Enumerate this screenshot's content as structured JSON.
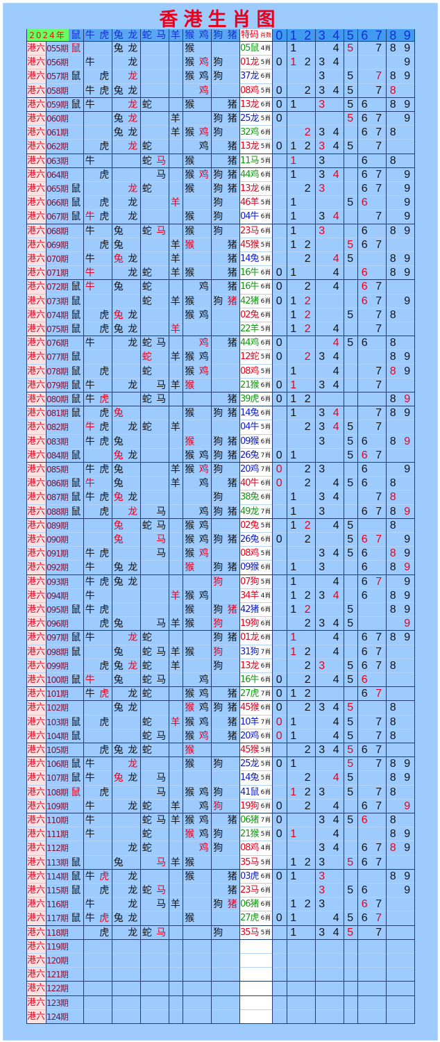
{
  "title": "香港生肖图",
  "header": {
    "year": "2024年",
    "zodiacs": [
      "鼠",
      "牛",
      "虎",
      "兔",
      "龙",
      "蛇",
      "马",
      "羊",
      "猴",
      "鸡",
      "狗",
      "猪"
    ],
    "code_label": "特码",
    "count_label": "肖数",
    "digits": [
      "0",
      "1",
      "2",
      "3",
      "4",
      "5",
      "6",
      "7",
      "8",
      "9"
    ]
  },
  "colors": {
    "accent_red": "#e8001c",
    "wave_green": "#119911",
    "wave_red": "#e8001c",
    "wave_blue": "#0a1acc",
    "background": "#9ecbfd",
    "year_cell": "#66ff66",
    "label_column": "#fde2e2"
  },
  "row_label": "港六",
  "rows": [
    {
      "p": "055期",
      "z": "鼠兔龙猴",
      "zr": "鼠",
      "c": "05鼠",
      "w": "green",
      "n": "4肖",
      "d": "145789",
      "dr": "5"
    },
    {
      "p": "056期",
      "z": "牛龙猴鸡狗",
      "zr": "鸡",
      "c": "01龙",
      "w": "red",
      "n": "5肖",
      "d": "012349",
      "dr": "1"
    },
    {
      "p": "057期",
      "z": "鼠虎龙猴鸡狗",
      "zr": "龙",
      "c": "37龙",
      "w": "blue",
      "n": "6肖",
      "d": "35789",
      "dr": "7"
    },
    {
      "p": "058期",
      "z": "牛虎兔龙鸡",
      "zr": "鸡",
      "c": "08鸡",
      "w": "red",
      "n": "5肖",
      "d": "0234578",
      "dr": "8",
      "end": true
    },
    {
      "p": "059期",
      "z": "鼠牛龙蛇猴猪",
      "zr": "龙",
      "c": "13龙",
      "w": "red",
      "n": "6肖",
      "d": "0135689",
      "dr": "3",
      "end": true
    },
    {
      "p": "060期",
      "z": "兔龙羊狗猪",
      "zr": "龙",
      "c": "25龙",
      "w": "blue",
      "n": "5肖",
      "d": "05679",
      "dr": "5"
    },
    {
      "p": "061期",
      "z": "兔龙羊猴鸡狗",
      "zr": "鸡",
      "c": "32鸡",
      "w": "green",
      "n": "6肖",
      "d": "234678",
      "dr": "2"
    },
    {
      "p": "062期",
      "z": "虎龙蛇鸡猪",
      "zr": "龙",
      "c": "13龙",
      "w": "red",
      "n": "5肖",
      "d": "0123457",
      "dr": "3",
      "end": true
    },
    {
      "p": "063期",
      "z": "牛蛇马猴猪",
      "zr": "马",
      "c": "11马",
      "w": "green",
      "n": "5肖",
      "d": "1368",
      "dr": "1",
      "end": true
    },
    {
      "p": "064期",
      "z": "虎马猴鸡狗猪",
      "zr": "鸡",
      "c": "44鸡",
      "w": "green",
      "n": "6肖",
      "d": "134679",
      "dr": "4"
    },
    {
      "p": "065期",
      "z": "鼠龙蛇猴狗猪",
      "zr": "龙",
      "c": "13龙",
      "w": "red",
      "n": "6肖",
      "d": "23679",
      "dr": "3"
    },
    {
      "p": "066期",
      "z": "鼠虎龙羊狗",
      "zr": "羊",
      "c": "46羊",
      "w": "red",
      "n": "5肖",
      "d": "1569",
      "dr": "6"
    },
    {
      "p": "067期",
      "z": "鼠牛虎龙猴狗",
      "zr": "牛",
      "c": "04牛",
      "w": "blue",
      "n": "6肖",
      "d": "13479",
      "dr": "4",
      "end": true
    },
    {
      "p": "068期",
      "z": "牛兔蛇马猴狗",
      "zr": "马",
      "c": "23马",
      "w": "red",
      "n": "6肖",
      "d": "13689",
      "dr": "3"
    },
    {
      "p": "069期",
      "z": "虎兔羊猴猪",
      "zr": "猴",
      "c": "45猴",
      "w": "red",
      "n": "5肖",
      "d": "12567",
      "dr": "5"
    },
    {
      "p": "070期",
      "z": "牛兔龙羊猪",
      "zr": "兔",
      "c": "14兔",
      "w": "blue",
      "n": "5肖",
      "d": "24589",
      "dr": "4"
    },
    {
      "p": "071期",
      "z": "牛龙蛇羊猴猪",
      "zr": "牛",
      "c": "16牛",
      "w": "green",
      "n": "6肖",
      "d": "014689",
      "dr": "6",
      "end": true
    },
    {
      "p": "072期",
      "z": "鼠牛兔蛇鸡猪",
      "zr": "牛",
      "c": "16牛",
      "w": "green",
      "n": "6肖",
      "d": "02467",
      "dr": "6"
    },
    {
      "p": "073期",
      "z": "鼠蛇羊猴狗猪",
      "zr": "猪",
      "c": "42猪",
      "w": "green",
      "n": "6肖",
      "d": "012679",
      "dr": "26"
    },
    {
      "p": "074期",
      "z": "鼠虎兔龙猴鸡",
      "zr": "兔",
      "c": "02兔",
      "w": "red",
      "n": "6肖",
      "d": "12578",
      "dr": "2"
    },
    {
      "p": "075期",
      "z": "鼠虎兔龙羊",
      "zr": "羊",
      "c": "22羊",
      "w": "green",
      "n": "5肖",
      "d": "1247",
      "dr": "2",
      "end": true
    },
    {
      "p": "076期",
      "z": "牛龙蛇马鸡猪",
      "zr": "鸡",
      "c": "44鸡",
      "w": "green",
      "n": "6肖",
      "d": "04568",
      "dr": "4"
    },
    {
      "p": "077期",
      "z": "鼠蛇羊猴鸡",
      "zr": "蛇",
      "c": "12蛇",
      "w": "red",
      "n": "5肖",
      "d": "023489",
      "dr": "2"
    },
    {
      "p": "078期",
      "z": "鼠虎蛇猴鸡",
      "zr": "鸡",
      "c": "08鸡",
      "w": "red",
      "n": "5肖",
      "d": "14789",
      "dr": "8"
    },
    {
      "p": "079期",
      "z": "鼠牛龙马羊猴",
      "zr": "猴",
      "c": "21猴",
      "w": "green",
      "n": "6肖",
      "d": "01347",
      "dr": "1",
      "end": true
    },
    {
      "p": "080期",
      "z": "鼠牛虎蛇马猪",
      "zr": "虎",
      "c": "39虎",
      "w": "green",
      "n": "6肖",
      "d": "01289",
      "dr": "9",
      "end": true
    },
    {
      "p": "081期",
      "z": "鼠虎兔猴狗猪",
      "zr": "兔",
      "c": "14兔",
      "w": "blue",
      "n": "6肖",
      "d": "134789",
      "dr": "4"
    },
    {
      "p": "082期",
      "z": "牛虎龙蛇羊",
      "zr": "牛",
      "c": "04牛",
      "w": "blue",
      "n": "5肖",
      "d": "23457",
      "dr": "4"
    },
    {
      "p": "083期",
      "z": "牛虎兔猴狗猪",
      "zr": "猴",
      "c": "09猴",
      "w": "blue",
      "n": "6肖",
      "d": "35689",
      "dr": "9"
    },
    {
      "p": "084期",
      "z": "鼠兔龙猴鸡狗猪",
      "zr": "兔",
      "c": "26兔",
      "w": "blue",
      "n": "7肖",
      "d": "01567",
      "dr": "6",
      "end": true
    },
    {
      "p": "085期",
      "z": "牛虎兔羊猴鸡狗",
      "zr": "鸡",
      "c": "20鸡",
      "w": "blue",
      "n": "7肖",
      "d": "02369",
      "dr": "0"
    },
    {
      "p": "086期",
      "z": "鼠牛兔羊鸡猪",
      "zr": "牛",
      "c": "40牛",
      "w": "red",
      "n": "6肖",
      "d": "024568",
      "dr": "0"
    },
    {
      "p": "087期",
      "z": "鼠牛虎兔龙狗",
      "zr": "兔",
      "c": "38兔",
      "w": "green",
      "n": "6肖",
      "d": "13478",
      "dr": "8"
    },
    {
      "p": "088期",
      "z": "鼠虎龙马鸡狗猪",
      "zr": "龙",
      "c": "49龙",
      "w": "green",
      "n": "7肖",
      "d": "136789",
      "dr": "9",
      "end": true
    },
    {
      "p": "089期",
      "z": "兔蛇马猴鸡",
      "zr": "兔",
      "c": "02兔",
      "w": "red",
      "n": "5肖",
      "d": "12458",
      "dr": "2"
    },
    {
      "p": "090期",
      "z": "兔马猴鸡狗猪",
      "zr": "兔马",
      "c": "26兔",
      "w": "blue",
      "n": "6肖",
      "d": "025679",
      "dr": "67"
    },
    {
      "p": "091期",
      "z": "牛虎马猴鸡",
      "zr": "鸡",
      "c": "08鸡",
      "w": "red",
      "n": "5肖",
      "d": "345689",
      "dr": "8"
    },
    {
      "p": "092期",
      "z": "牛兔龙猴狗猪",
      "zr": "猴",
      "c": "09猴",
      "w": "blue",
      "n": "6肖",
      "d": "13689",
      "dr": "9",
      "end": true
    },
    {
      "p": "093期",
      "z": "牛虎兔龙狗",
      "zr": "狗",
      "c": "07狗",
      "w": "red",
      "n": "5肖",
      "d": "14679",
      "dr": "7"
    },
    {
      "p": "094期",
      "z": "牛羊猴鸡",
      "zr": "羊",
      "c": "34羊",
      "w": "red",
      "n": "4肖",
      "d": "1234689",
      "dr": "4"
    },
    {
      "p": "095期",
      "z": "鼠牛虎猴狗猪",
      "zr": "猪",
      "c": "42猪",
      "w": "blue",
      "n": "6肖",
      "d": "12589",
      "dr": "2"
    },
    {
      "p": "096期",
      "z": "虎兔马羊猴狗",
      "zr": "狗",
      "c": "19狗",
      "w": "red",
      "n": "6肖",
      "d": "23459",
      "dr": "9",
      "end": true
    },
    {
      "p": "097期",
      "z": "鼠牛龙蛇狗猪",
      "zr": "龙",
      "c": "01龙",
      "w": "red",
      "n": "6肖",
      "d": "146789",
      "dr": "1"
    },
    {
      "p": "098期",
      "z": "鼠兔蛇马羊猴狗",
      "zr": "狗",
      "c": "31狗",
      "w": "blue",
      "n": "7肖",
      "d": "12467",
      "dr": "1"
    },
    {
      "p": "099期",
      "z": "虎兔龙蛇羊狗",
      "zr": "龙",
      "c": "13龙",
      "w": "red",
      "n": "6肖",
      "d": "235678",
      "dr": "3"
    },
    {
      "p": "100期",
      "z": "鼠牛兔蛇马鸡",
      "zr": "牛",
      "c": "16牛",
      "w": "green",
      "n": "6肖",
      "d": "02456",
      "dr": "6",
      "end": true
    },
    {
      "p": "101期",
      "z": "牛虎龙蛇猴鸡猪",
      "zr": "虎",
      "c": "27虎",
      "w": "green",
      "n": "7肖",
      "d": "01267",
      "dr": "7",
      "end": true
    },
    {
      "p": "102期",
      "z": "兔龙猴鸡狗猪",
      "zr": "猴",
      "c": "45猴",
      "w": "red",
      "n": "6肖",
      "d": "023458",
      "dr": "5"
    },
    {
      "p": "103期",
      "z": "鼠虎蛇羊猴鸡猪",
      "zr": "羊",
      "c": "10羊",
      "w": "blue",
      "n": "7肖",
      "d": "014578",
      "dr": "0"
    },
    {
      "p": "104期",
      "z": "鼠蛇马猴鸡猪",
      "zr": "鸡",
      "c": "20鸡",
      "w": "blue",
      "n": "6肖",
      "d": "014578",
      "dr": "0",
      "end": true
    },
    {
      "p": "105期",
      "z": "虎兔龙蛇猴",
      "zr": "猴",
      "c": "45猴",
      "w": "red",
      "n": "5肖",
      "d": "234567",
      "dr": "5",
      "end": true
    },
    {
      "p": "106期",
      "z": "鼠牛龙猴狗",
      "zr": "龙",
      "c": "25龙",
      "w": "blue",
      "n": "5肖",
      "d": "015789",
      "dr": "5"
    },
    {
      "p": "107期",
      "z": "鼠牛兔龙马",
      "zr": "兔",
      "c": "14兔",
      "w": "blue",
      "n": "5肖",
      "d": "24589",
      "dr": "4"
    },
    {
      "p": "108期",
      "z": "鼠虎马猴鸡狗",
      "zr": "鼠",
      "c": "41鼠",
      "w": "blue",
      "n": "6肖",
      "d": "123578",
      "dr": "1"
    },
    {
      "p": "109期",
      "z": "牛龙蛇羊鸡狗",
      "zr": "狗",
      "c": "19狗",
      "w": "red",
      "n": "6肖",
      "d": "024679",
      "dr": "9",
      "end": true
    },
    {
      "p": "110期",
      "z": "牛蛇马羊猴鸡猪",
      "zr": "",
      "c": "06猪",
      "w": "green",
      "n": "7肖",
      "d": "034568",
      "dr": "6"
    },
    {
      "p": "111期",
      "z": "牛蛇猴鸡狗",
      "zr": "猴",
      "c": "21猴",
      "w": "green",
      "n": "5肖",
      "d": "01489",
      "dr": "1"
    },
    {
      "p": "112期",
      "z": "龙蛇鸡狗",
      "zr": "鸡",
      "c": "08鸡",
      "w": "red",
      "n": "4肖",
      "d": "346789",
      "dr": "8"
    },
    {
      "p": "113期",
      "z": "鼠兔马羊猴",
      "zr": "马",
      "c": "35马",
      "w": "red",
      "n": "5肖",
      "d": "123567",
      "dr": "5",
      "end": true
    },
    {
      "p": "114期",
      "z": "鼠牛虎龙猴猪",
      "zr": "虎",
      "c": "03虎",
      "w": "blue",
      "n": "6肖",
      "d": "01389",
      "dr": "3"
    },
    {
      "p": "115期",
      "z": "鼠虎龙蛇马猪",
      "zr": "马",
      "c": "23马",
      "w": "red",
      "n": "6肖",
      "d": "3569",
      "dr": "3"
    },
    {
      "p": "116期",
      "z": "牛龙马羊狗猪",
      "zr": "猪",
      "c": "06猪",
      "w": "green",
      "n": "6肖",
      "d": "12367",
      "dr": "6"
    },
    {
      "p": "117期",
      "z": "鼠牛虎兔龙猴",
      "zr": "虎",
      "c": "27虎",
      "w": "green",
      "n": "6肖",
      "d": "014567",
      "dr": "7",
      "end": true
    },
    {
      "p": "118期",
      "z": "虎龙蛇马狗",
      "zr": "马",
      "c": "35马",
      "w": "red",
      "n": "5肖",
      "d": "13457",
      "dr": "5",
      "end": true
    },
    {
      "p": "119期"
    },
    {
      "p": "120期"
    },
    {
      "p": "121期",
      "end": true
    },
    {
      "p": "122期",
      "end": true
    },
    {
      "p": "123期"
    },
    {
      "p": "124期",
      "end": true
    }
  ]
}
